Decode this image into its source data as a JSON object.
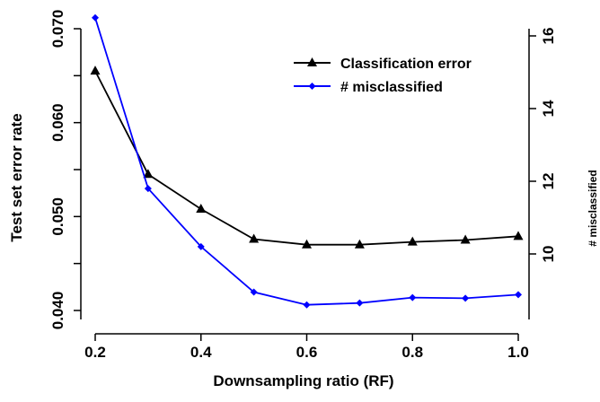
{
  "chart_data": {
    "type": "line",
    "xlabel": "Downsampling ratio (RF)",
    "ylabel": "Test set error rate",
    "y2label": "# misclassified",
    "x": [
      0.2,
      0.3,
      0.4,
      0.5,
      0.6,
      0.7,
      0.8,
      0.9,
      1.0
    ],
    "xticks": [
      "0.2",
      "0.4",
      "0.6",
      "0.8",
      "1.0"
    ],
    "yticks": [
      "0.040",
      "0.050",
      "0.060",
      "0.070"
    ],
    "y2ticks": [
      "10",
      "12",
      "14",
      "16"
    ],
    "xlim": [
      0.2,
      1.0
    ],
    "ylim": [
      0.04,
      0.07
    ],
    "y2lim": [
      8.6,
      16.5
    ],
    "legend_position": "top-right",
    "grid": false,
    "series": [
      {
        "name": "Classification error",
        "axis": "left",
        "color": "#000000",
        "marker": "triangle",
        "values": [
          0.0655,
          0.0545,
          0.0508,
          0.0476,
          0.047,
          0.047,
          0.0473,
          0.0475,
          0.0479
        ]
      },
      {
        "name": "# misclassified",
        "axis": "right",
        "color": "#0000ff",
        "marker": "diamond",
        "values": [
          16.5,
          11.8,
          10.2,
          8.95,
          8.6,
          8.65,
          8.8,
          8.78,
          8.88
        ]
      }
    ]
  }
}
